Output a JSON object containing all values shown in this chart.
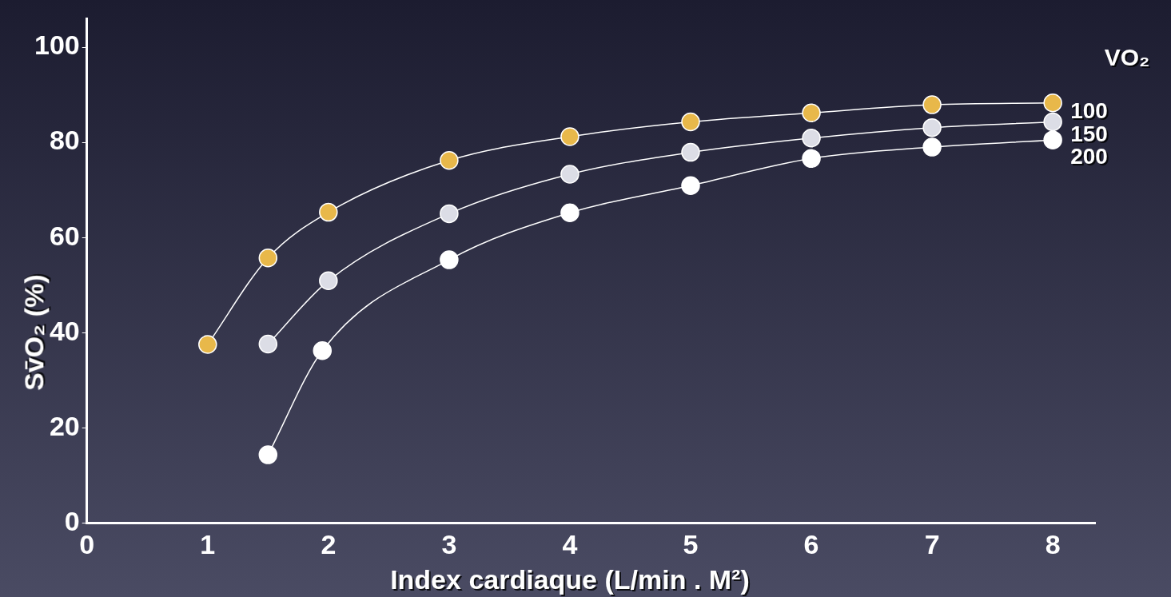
{
  "chart_data": {
    "type": "line",
    "xlabel": "Index cardiaque (L/min . M²)",
    "ylabel": "Sv̄O₂ (%)",
    "legend_title": "VO₂",
    "xlim": [
      0,
      8.35
    ],
    "ylim": [
      0,
      106
    ],
    "xticks": [
      0,
      1,
      2,
      3,
      4,
      5,
      6,
      7,
      8
    ],
    "yticks": [
      0,
      20,
      40,
      60,
      80,
      100
    ],
    "grid": false,
    "legend": false,
    "marker": "circle",
    "line_style": "solid",
    "series": [
      {
        "name": "100",
        "color": "#e8b84a",
        "x": [
          1,
          1.5,
          2,
          3,
          4,
          5,
          6,
          7,
          8
        ],
        "values": [
          37.5,
          55.7,
          65.3,
          76.2,
          81.2,
          84.3,
          86.2,
          87.9,
          88.3
        ]
      },
      {
        "name": "150",
        "color": "#dcdde6",
        "x": [
          1.5,
          2,
          3,
          4,
          5,
          6,
          7,
          8
        ],
        "values": [
          37.6,
          50.9,
          65,
          73.3,
          77.9,
          80.9,
          83.1,
          84.3
        ]
      },
      {
        "name": "200",
        "color": "#ffffff",
        "x": [
          1.5,
          1.95,
          3,
          4,
          5,
          6,
          7,
          8
        ],
        "values": [
          14.3,
          36.2,
          55.3,
          65.2,
          70.9,
          76.6,
          79,
          80.5
        ]
      }
    ]
  }
}
